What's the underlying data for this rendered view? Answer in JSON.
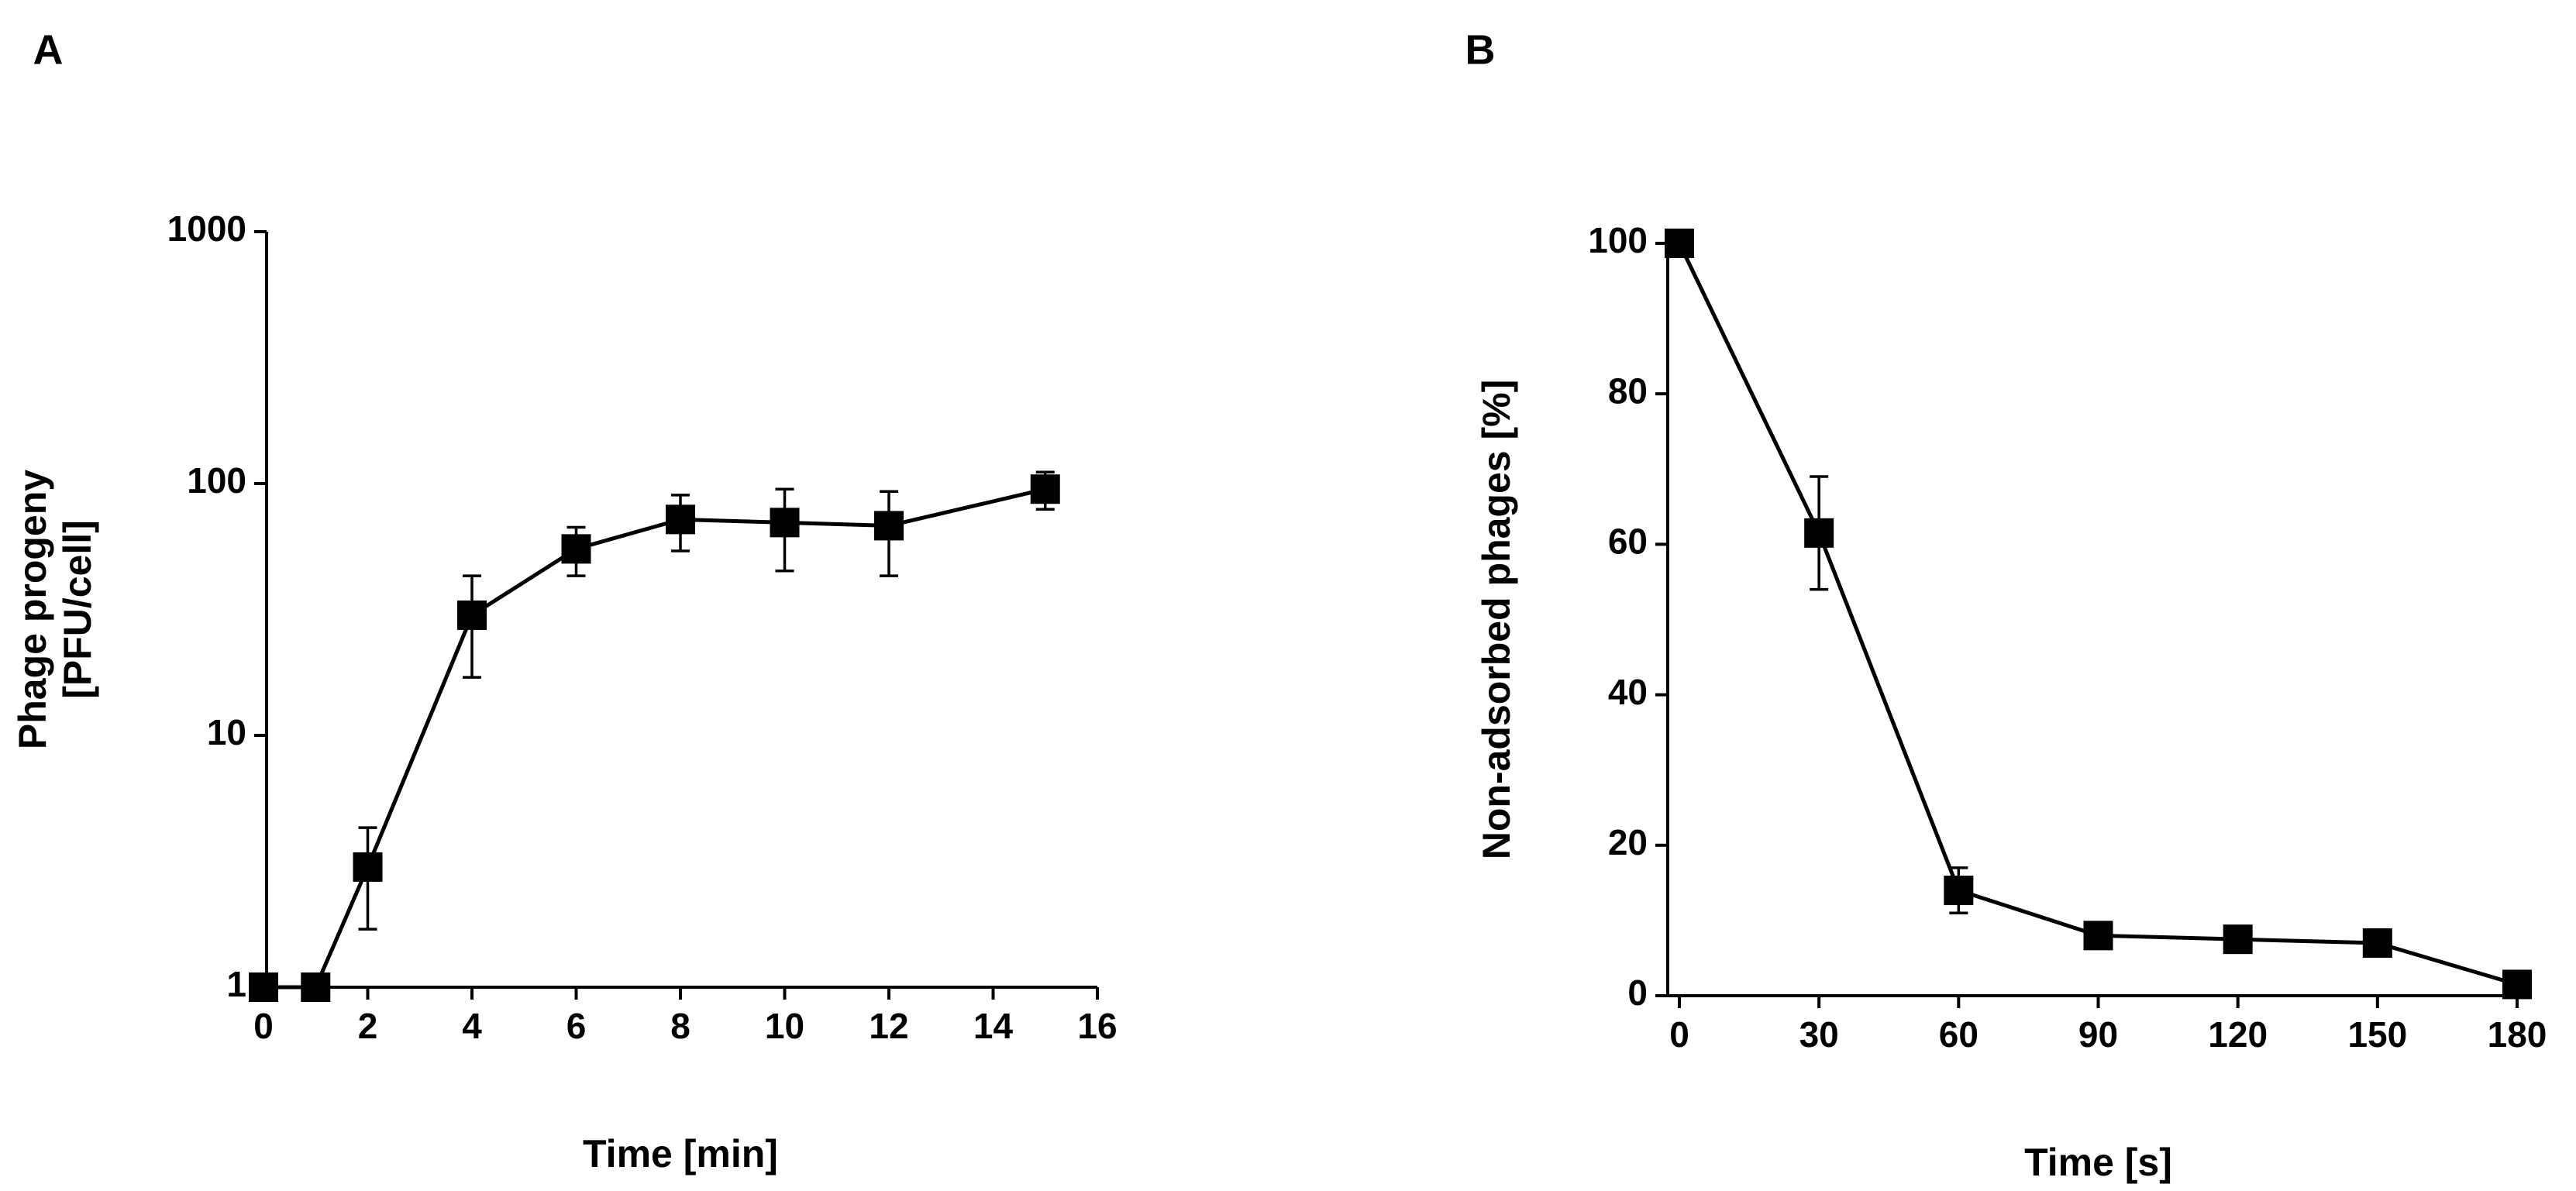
{
  "chart_data": [
    {
      "type": "line",
      "panel": "A",
      "xlabel": "Time [min]",
      "ylabel": [
        "Phage progeny",
        "[PFU/cell]"
      ],
      "x": [
        0,
        1,
        2,
        4,
        6,
        8,
        10,
        12,
        15
      ],
      "values": [
        1,
        1,
        3,
        30,
        55,
        72,
        70,
        68,
        95
      ],
      "errors": [
        0,
        0,
        1.3,
        13,
        12,
        18,
        25,
        25,
        16
      ],
      "xlim": [
        0,
        16
      ],
      "xticks": [
        0,
        2,
        4,
        6,
        8,
        10,
        12,
        14,
        16
      ],
      "ylim": [
        1,
        1000
      ],
      "yticks": [
        1,
        10,
        100,
        1000
      ],
      "log": true,
      "color": "#000000"
    },
    {
      "type": "line",
      "panel": "B",
      "xlabel": "Time [s]",
      "ylabel": [
        "Non-adsorbed phages [%]"
      ],
      "x": [
        0,
        30,
        60,
        90,
        120,
        150,
        180
      ],
      "values": [
        100,
        61.5,
        14,
        8,
        7.5,
        7,
        1.5
      ],
      "errors": [
        0,
        7.5,
        3,
        0.5,
        0.5,
        0.5,
        0.5
      ],
      "xlim": [
        0,
        180
      ],
      "xticks": [
        0,
        30,
        60,
        90,
        120,
        150,
        180
      ],
      "ylim": [
        0,
        100
      ],
      "yticks": [
        0,
        20,
        40,
        60,
        80,
        100
      ],
      "log": false,
      "color": "#000000"
    }
  ]
}
